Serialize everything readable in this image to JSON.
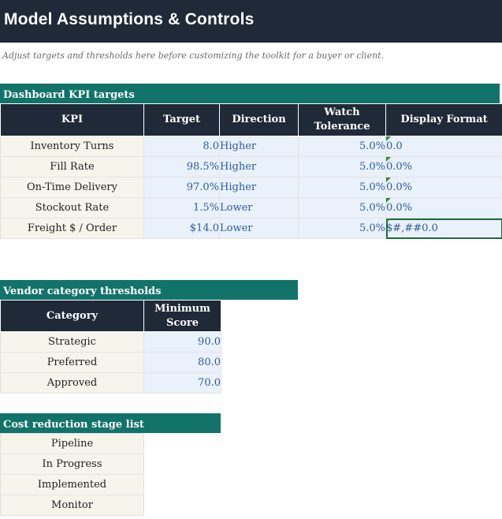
{
  "title": "Model Assumptions & Controls",
  "subtitle": "Adjust targets and thresholds here before customizing the toolkit for a buyer or client.",
  "kpi_section": {
    "heading": "Dashboard KPI targets",
    "columns": [
      "KPI",
      "Target",
      "Direction",
      "Watch\nTolerance",
      "Display Format"
    ],
    "rows": [
      {
        "kpi": "Inventory Turns",
        "target": "8.0",
        "direction": "Higher",
        "tolerance": "5.0%",
        "format": "0.0"
      },
      {
        "kpi": "Fill Rate",
        "target": "98.5%",
        "direction": "Higher",
        "tolerance": "5.0%",
        "format": "0.0%"
      },
      {
        "kpi": "On-Time Delivery",
        "target": "97.0%",
        "direction": "Higher",
        "tolerance": "5.0%",
        "format": "0.0%"
      },
      {
        "kpi": "Stockout Rate",
        "target": "1.5%",
        "direction": "Lower",
        "tolerance": "5.0%",
        "format": "0.0%"
      },
      {
        "kpi": "Freight $ / Order",
        "target": "$14.0",
        "direction": "Lower",
        "tolerance": "5.0%",
        "format": "$#,##0.0"
      }
    ]
  },
  "vendor_section": {
    "heading": "Vendor category thresholds",
    "columns": [
      "Category",
      "Minimum\nScore"
    ],
    "rows": [
      {
        "category": "Strategic",
        "score": "90.0"
      },
      {
        "category": "Preferred",
        "score": "80.0"
      },
      {
        "category": "Approved",
        "score": "70.0"
      }
    ]
  },
  "stage_section": {
    "heading": "Cost reduction stage list",
    "stages": [
      "Pipeline",
      "In Progress",
      "Implemented",
      "Monitor"
    ]
  },
  "colors": {
    "header_dark": "#1f2937",
    "section_green": "#12736a",
    "input_blue_text": "#2f5aa3",
    "input_fill": "#e9f1fb",
    "label_fill": "#f7f4ec"
  }
}
